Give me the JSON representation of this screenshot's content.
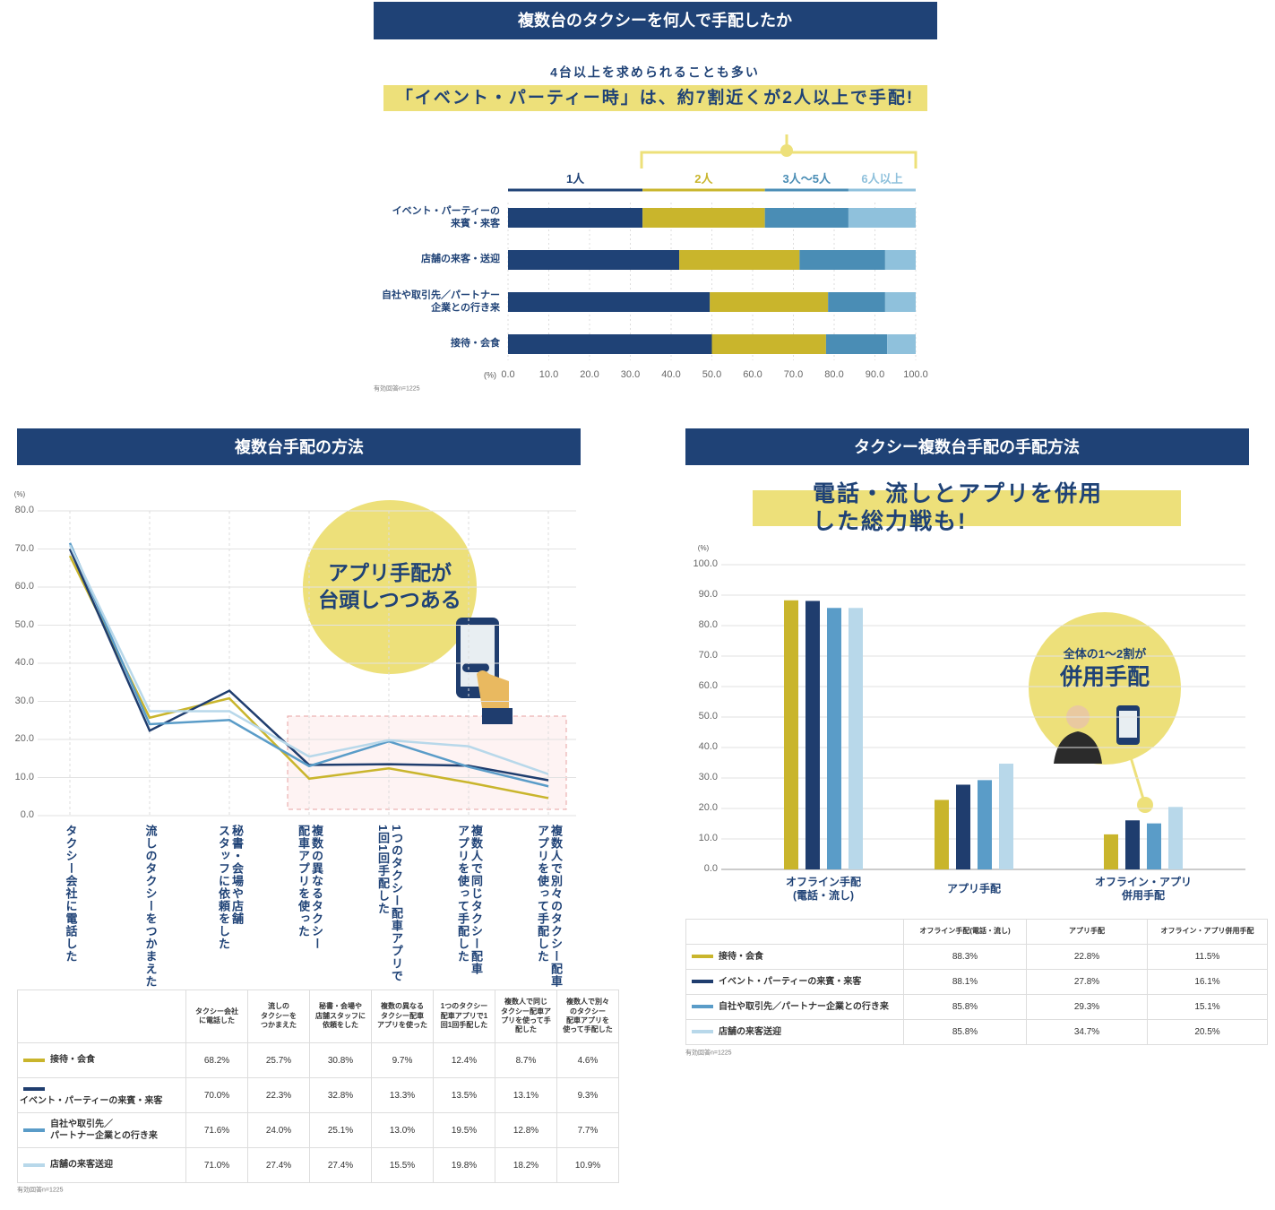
{
  "chart_data": [
    {
      "type": "bar",
      "orientation": "horizontal",
      "stacked": true,
      "title": "複数台のタクシーを何人で手配したか",
      "subtitle": "4台以上を求められることも多い",
      "headline": "「イベント・パーティー時」は、約7割近くが2人以上で手配!",
      "categories": [
        "イベント・パーティーの\n来賓・来客",
        "店舗の来客・送迎",
        "自社や取引先／パートナー\n企業との行き来",
        "接待・会食"
      ],
      "series": [
        {
          "name": "1人",
          "color": "#1f4276",
          "values": [
            33,
            42,
            49.5,
            50
          ]
        },
        {
          "name": "2人",
          "color": "#c9b52c",
          "values": [
            30,
            29.5,
            29,
            28
          ]
        },
        {
          "name": "3人～5人",
          "color": "#4a8db5",
          "values": [
            20.5,
            21,
            14,
            15
          ]
        },
        {
          "name": "6人以上",
          "color": "#8fc1dc",
          "values": [
            16.5,
            7.5,
            7.5,
            7
          ]
        }
      ],
      "xlabel": "(%)",
      "xlim": [
        0,
        100
      ],
      "xticks": [
        {
          "value": 0,
          "label": "0.0"
        },
        {
          "value": 10,
          "label": "10.0"
        },
        {
          "value": 20,
          "label": "20.0"
        },
        {
          "value": 30,
          "label": "30.0"
        },
        {
          "value": 40,
          "label": "40.0"
        },
        {
          "value": 50,
          "label": "50.0"
        },
        {
          "value": 60,
          "label": "60.0"
        },
        {
          "value": 70,
          "label": "70.0"
        },
        {
          "value": 80,
          "label": "80.0"
        },
        {
          "value": 90,
          "label": "90.0"
        },
        {
          "value": 100,
          "label": "100.0"
        }
      ],
      "grid": true,
      "note": "有効回答n=1225"
    },
    {
      "type": "line",
      "title": "複数台手配の方法",
      "annotation": "アプリ手配が\n台頭しつつある",
      "categories": [
        "タクシー会社に電話した",
        "流しのタクシーをつかまえた",
        "秘書・会場や店舗\nスタッフに依頼をした",
        "複数の異なるタクシー\n配車アプリを使った",
        "1つのタクシー配車アプリで\n1回1回手配した",
        "複数人で同じタクシー配車\nアプリを使って手配した",
        "複数人で別々のタクシー配車\nアプリを使って手配した"
      ],
      "table_headers": [
        "タクシー会社\nに電話した",
        "流しの\nタクシーを\nつかまえた",
        "秘書・会場や\n店舗スタッフに\n依頼をした",
        "複数の異なる\nタクシー配車\nアプリを使った",
        "1つのタクシー\n配車アプリで1\n回1回手配した",
        "複数人で同じ\nタクシー配車ア\nプリを使って手\n配した",
        "複数人で別々\nのタクシー\n配車アプリを\n使って手配した"
      ],
      "series": [
        {
          "name": "接待・会食",
          "color": "#c9b52c",
          "values": [
            68.2,
            25.7,
            30.8,
            9.7,
            12.4,
            8.7,
            4.6
          ],
          "value_labels": [
            "68.2%",
            "25.7%",
            "30.8%",
            "9.7%",
            "12.4%",
            "8.7%",
            "4.6%"
          ]
        },
        {
          "name": "イベント・パーティーの来賓・来客",
          "color": "#1f3d6e",
          "values": [
            70.0,
            22.3,
            32.8,
            13.3,
            13.5,
            13.1,
            9.3
          ],
          "value_labels": [
            "70.0%",
            "22.3%",
            "32.8%",
            "13.3%",
            "13.5%",
            "13.1%",
            "9.3%"
          ]
        },
        {
          "name": "自社や取引先／\nパートナー企業との行き来",
          "color": "#5a9cc8",
          "values": [
            71.6,
            24.0,
            25.1,
            13.0,
            19.5,
            12.8,
            7.7
          ],
          "value_labels": [
            "71.6%",
            "24.0%",
            "25.1%",
            "13.0%",
            "19.5%",
            "12.8%",
            "7.7%"
          ]
        },
        {
          "name": "店舗の来客送迎",
          "color": "#b8d8ea",
          "values": [
            71.0,
            27.4,
            27.4,
            15.5,
            19.8,
            18.2,
            10.9
          ],
          "value_labels": [
            "71.0%",
            "27.4%",
            "27.4%",
            "15.5%",
            "19.8%",
            "18.2%",
            "10.9%"
          ]
        }
      ],
      "ylabel": "(%)",
      "ylim": [
        0,
        80
      ],
      "yticks": [
        {
          "value": 0,
          "label": "0.0"
        },
        {
          "value": 10,
          "label": "10.0"
        },
        {
          "value": 20,
          "label": "20.0"
        },
        {
          "value": 30,
          "label": "30.0"
        },
        {
          "value": 40,
          "label": "40.0"
        },
        {
          "value": 50,
          "label": "50.0"
        },
        {
          "value": 60,
          "label": "60.0"
        },
        {
          "value": 70,
          "label": "70.0"
        },
        {
          "value": 80,
          "label": "80.0"
        }
      ],
      "grid": true,
      "note": "有効回答n=1225"
    },
    {
      "type": "bar",
      "orientation": "vertical",
      "stacked": false,
      "title": "タクシー複数台手配の手配方法",
      "headline": "電話・流しとアプリを併用した総力戦も!",
      "annotations": [
        "全体の1～2割が",
        "併用手配"
      ],
      "categories": [
        "オフライン手配\n(電話・流し)",
        "アプリ手配",
        "オフライン・アプリ\n併用手配"
      ],
      "table_headers": [
        "オフライン手配(電話・流し)",
        "アプリ手配",
        "オフライン・アプリ併用手配"
      ],
      "series": [
        {
          "name": "接待・会食",
          "color": "#c9b52c",
          "values": [
            88.3,
            22.8,
            11.5
          ],
          "value_labels": [
            "88.3%",
            "22.8%",
            "11.5%"
          ]
        },
        {
          "name": "イベント・パーティーの来賓・来客",
          "color": "#1f3d6e",
          "values": [
            88.1,
            27.8,
            16.1
          ],
          "value_labels": [
            "88.1%",
            "27.8%",
            "16.1%"
          ]
        },
        {
          "name": "自社や取引先／パートナー企業との行き来",
          "color": "#5a9cc8",
          "values": [
            85.8,
            29.3,
            15.1
          ],
          "value_labels": [
            "85.8%",
            "29.3%",
            "15.1%"
          ]
        },
        {
          "name": "店舗の来客送迎",
          "color": "#b8d8ea",
          "values": [
            85.8,
            34.7,
            20.5
          ],
          "value_labels": [
            "85.8%",
            "34.7%",
            "20.5%"
          ]
        }
      ],
      "ylabel": "(%)",
      "ylim": [
        0,
        100
      ],
      "yticks": [
        {
          "value": 0,
          "label": "0.0"
        },
        {
          "value": 10,
          "label": "10.0"
        },
        {
          "value": 20,
          "label": "20.0"
        },
        {
          "value": 30,
          "label": "30.0"
        },
        {
          "value": 40,
          "label": "40.0"
        },
        {
          "value": 50,
          "label": "50.0"
        },
        {
          "value": 60,
          "label": "60.0"
        },
        {
          "value": 70,
          "label": "70.0"
        },
        {
          "value": 80,
          "label": "80.0"
        },
        {
          "value": 90,
          "label": "90.0"
        },
        {
          "value": 100,
          "label": "100.0"
        }
      ],
      "grid": true,
      "note": "有効回答n=1225"
    }
  ]
}
